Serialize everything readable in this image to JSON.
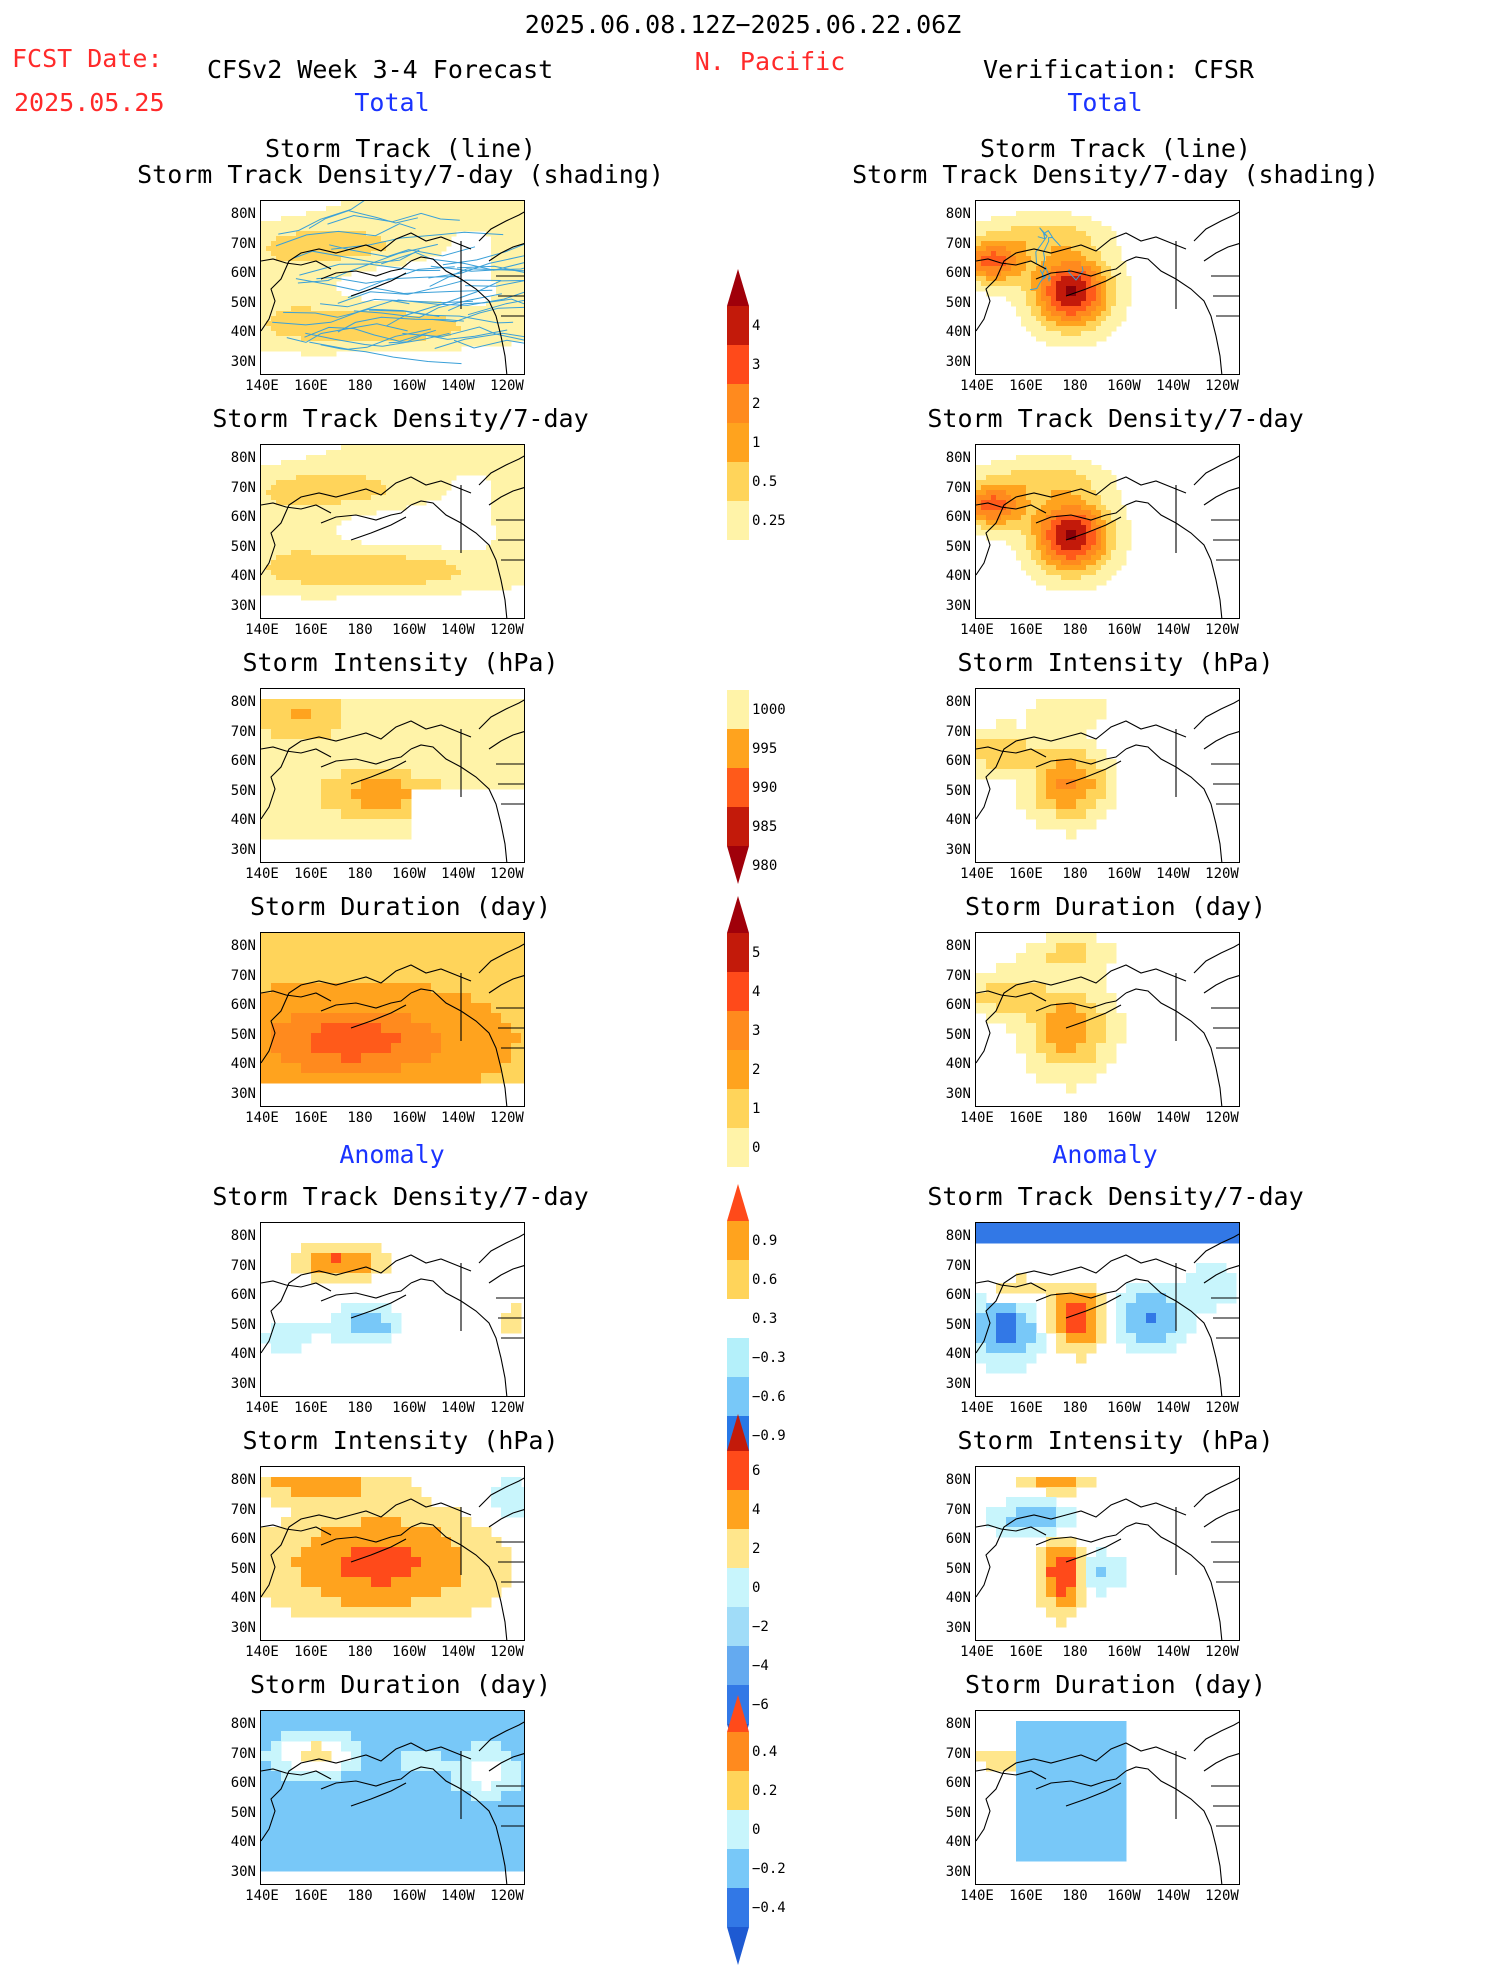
{
  "header": {
    "date_range": "2025.06.08.12Z−2025.06.22.06Z",
    "fcst_label": "FCST Date:",
    "fcst_date": "2025.05.25",
    "model_title": "CFSv2 Week 3-4 Forecast",
    "region": "N. Pacific",
    "verification": "Verification: CFSR",
    "total_label_left": "Total",
    "total_label_right": "Total",
    "anomaly_label_left": "Anomaly",
    "anomaly_label_right": "Anomaly"
  },
  "axes": {
    "lat_ticks": [
      "80N",
      "70N",
      "60N",
      "50N",
      "40N",
      "30N"
    ],
    "lon_ticks": [
      "140E",
      "160E",
      "180",
      "160W",
      "140W",
      "120W"
    ]
  },
  "panels": [
    {
      "id": "track-fcst",
      "title1": "Storm Track (line)",
      "title2": "Storm Track Density/7-day (shading)",
      "scheme": "warm",
      "style": "track",
      "tracks": true
    },
    {
      "id": "track-obs",
      "title1": "Storm Track (line)",
      "title2": "Storm Track Density/7-day (shading)",
      "scheme": "warm",
      "style": "blob",
      "tracks": true
    },
    {
      "id": "dens-fcst",
      "title1": "Storm Track Density/7-day",
      "scheme": "warm",
      "style": "track"
    },
    {
      "id": "dens-obs",
      "title1": "Storm Track Density/7-day",
      "scheme": "warm",
      "style": "blob"
    },
    {
      "id": "int-fcst",
      "title1": "Storm Intensity (hPa)",
      "scheme": "warm",
      "style": "pix-int"
    },
    {
      "id": "int-obs",
      "title1": "Storm Intensity (hPa)",
      "scheme": "warm",
      "style": "pix-int-obs"
    },
    {
      "id": "dur-fcst",
      "title1": "Storm Duration (day)",
      "scheme": "warm",
      "style": "pix-dur"
    },
    {
      "id": "dur-obs",
      "title1": "Storm Duration (day)",
      "scheme": "warm",
      "style": "pix-dur-obs"
    },
    {
      "id": "adens-fcst",
      "title1": "Storm Track Density/7-day",
      "scheme": "div",
      "style": "anom-dens"
    },
    {
      "id": "adens-obs",
      "title1": "Storm Track Density/7-day",
      "scheme": "div",
      "style": "anom-dens-obs"
    },
    {
      "id": "aint-fcst",
      "title1": "Storm Intensity (hPa)",
      "scheme": "div",
      "style": "anom-int"
    },
    {
      "id": "aint-obs",
      "title1": "Storm Intensity (hPa)",
      "scheme": "div",
      "style": "anom-int-obs"
    },
    {
      "id": "adur-fcst",
      "title1": "Storm Duration (day)",
      "scheme": "div",
      "style": "anom-dur"
    },
    {
      "id": "adur-obs",
      "title1": "Storm Duration (day)",
      "scheme": "div",
      "style": "anom-dur-obs"
    }
  ],
  "colorbars": [
    {
      "id": "cb-density",
      "labels": [
        "4",
        "3",
        "2",
        "1",
        "0.5",
        "0.25"
      ],
      "colors": [
        "#c31a0a",
        "#ff4a1a",
        "#ff8a1e",
        "#ffa31e",
        "#ffd45a",
        "#fff3a8"
      ],
      "top_color": "#a0000a",
      "bottom_color": "#ffffff"
    },
    {
      "id": "cb-intensity",
      "labels": [
        "1000",
        "995",
        "990",
        "985",
        "980"
      ],
      "colors": [
        "#fff3a8",
        "#ffa31e",
        "#ff5a1a",
        "#c31a0a"
      ],
      "top_color": "#ffffff",
      "bottom_color": "#a0000a"
    },
    {
      "id": "cb-duration",
      "labels": [
        "5",
        "4",
        "3",
        "2",
        "1",
        "0"
      ],
      "colors": [
        "#c31a0a",
        "#ff4a1a",
        "#ff8a1e",
        "#ffa31e",
        "#ffd45a",
        "#fff3a8"
      ],
      "top_color": "#a0000a",
      "bottom_color": "#ffffff"
    },
    {
      "id": "cb-anom-density",
      "labels": [
        "0.9",
        "0.6",
        "0.3",
        "−0.3",
        "−0.6",
        "−0.9"
      ],
      "colors": [
        "#ffa31e",
        "#ffd45a",
        "#ffffff",
        "#b4f0fa",
        "#78c8f8",
        "#2878e6"
      ],
      "top_color": "#ff4a1a",
      "bottom_color": "#1e5ad2"
    },
    {
      "id": "cb-anom-intensity",
      "labels": [
        "6",
        "4",
        "2",
        "0",
        "−2",
        "−4",
        "−6"
      ],
      "colors": [
        "#ff4a1a",
        "#ffa31e",
        "#ffe68c",
        "#c8f5fc",
        "#a0dcf8",
        "#64aaf0",
        "#3278e6"
      ],
      "top_color": "#c31a0a",
      "bottom_color": "#1e5ad2"
    },
    {
      "id": "cb-anom-duration",
      "labels": [
        "0.4",
        "0.2",
        "0",
        "−0.2",
        "−0.4"
      ],
      "colors": [
        "#ff8a1e",
        "#ffd45a",
        "#c8f5fc",
        "#78c8f8",
        "#3278e6"
      ],
      "top_color": "#ff4a1a",
      "bottom_color": "#1e5ad2"
    }
  ],
  "chart_data": {
    "type": "heatmap",
    "title": "2025.06.08.12Z−2025.06.22.06Z",
    "region": "N. Pacific",
    "xlim": [
      "140E",
      "120W"
    ],
    "ylim": [
      "25N",
      "85N"
    ],
    "density_levels": [
      0.25,
      0.5,
      1,
      2,
      3,
      4
    ],
    "intensity_levels": [
      1000,
      995,
      990,
      985,
      980
    ],
    "duration_levels": [
      0,
      1,
      2,
      3,
      4,
      5
    ],
    "anom_density_levels": [
      -0.9,
      -0.6,
      -0.3,
      0.3,
      0.6,
      0.9
    ],
    "anom_intensity_levels": [
      -6,
      -4,
      -2,
      0,
      2,
      4,
      6
    ],
    "anom_duration_levels": [
      -0.4,
      -0.2,
      0,
      0.2,
      0.4
    ]
  }
}
